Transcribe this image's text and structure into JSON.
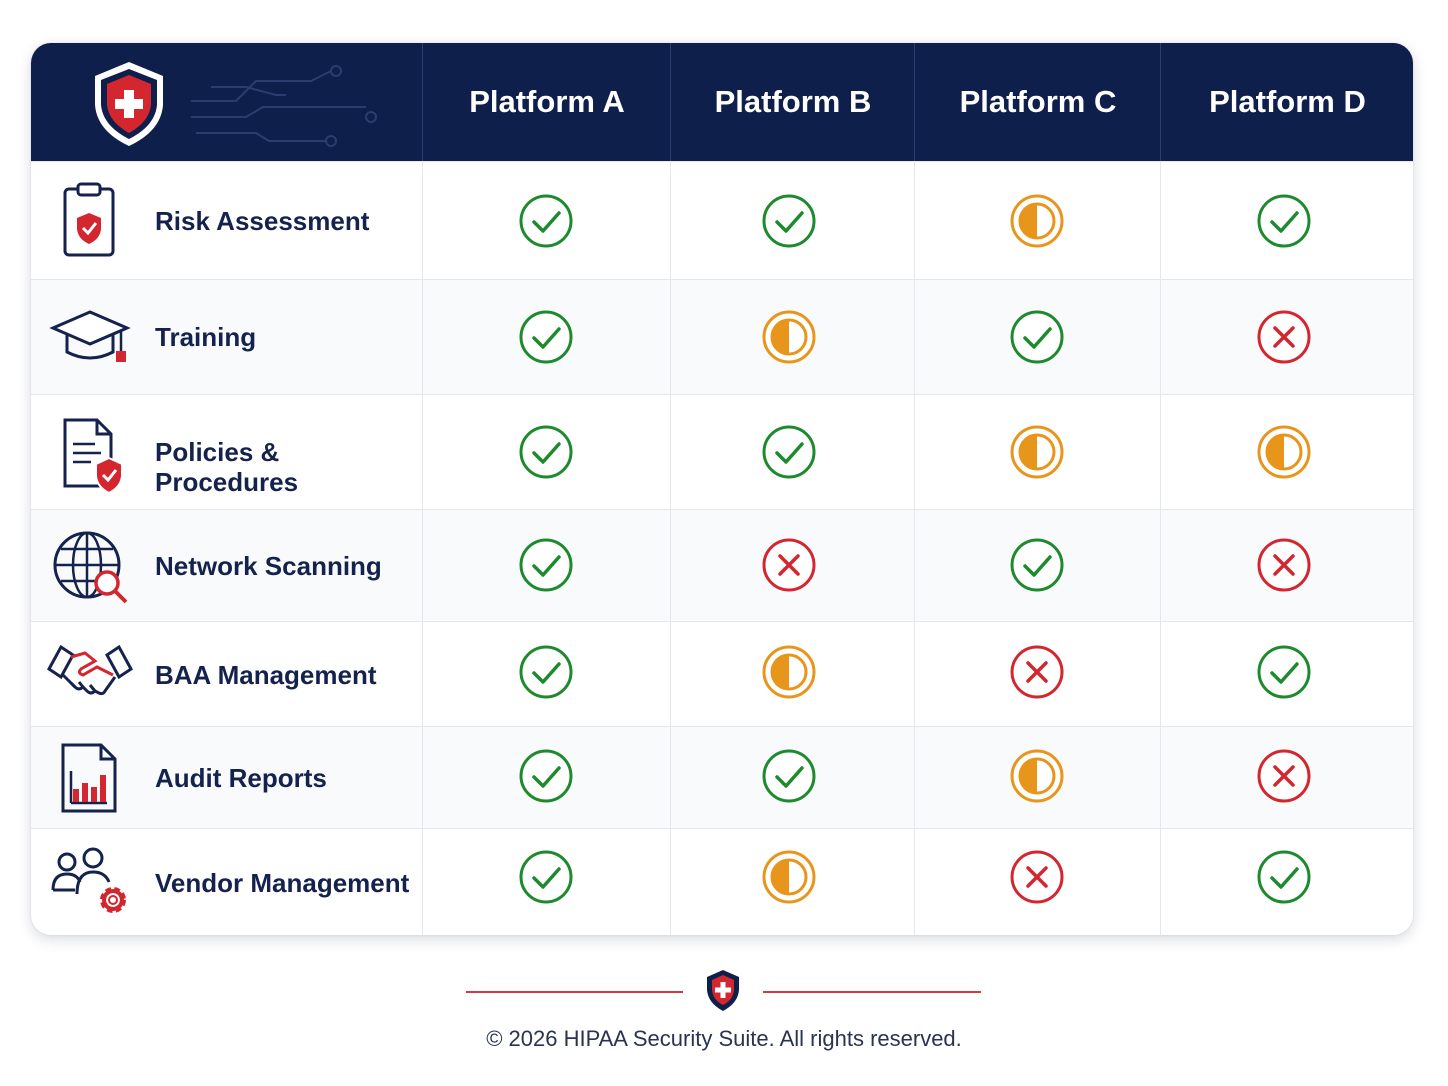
{
  "header": {
    "logo_icon": "shield-medical-cross-icon",
    "platforms": [
      "Platform A",
      "Platform B",
      "Platform C",
      "Platform D"
    ]
  },
  "features": [
    {
      "label": "Risk Assessment",
      "icon": "clipboard-shield-icon",
      "statuses": [
        "check",
        "check",
        "partial",
        "check"
      ]
    },
    {
      "label": "Training",
      "icon": "graduation-cap-icon",
      "statuses": [
        "check",
        "partial",
        "check",
        "cross"
      ]
    },
    {
      "label": "Policies & Procedures",
      "icon": "document-shield-icon",
      "statuses": [
        "check",
        "check",
        "partial",
        "partial"
      ]
    },
    {
      "label": "Network Scanning",
      "icon": "globe-search-icon",
      "statuses": [
        "check",
        "cross",
        "check",
        "cross"
      ]
    },
    {
      "label": "BAA Management",
      "icon": "handshake-icon",
      "statuses": [
        "check",
        "partial",
        "cross",
        "check"
      ]
    },
    {
      "label": "Audit Reports",
      "icon": "report-chart-icon",
      "statuses": [
        "check",
        "check",
        "partial",
        "cross"
      ]
    },
    {
      "label": "Vendor Management",
      "icon": "users-gear-icon",
      "statuses": [
        "check",
        "partial",
        "cross",
        "check"
      ]
    }
  ],
  "colors": {
    "header_bg": "#0f1f4b",
    "check": "#1e8a2e",
    "partial": "#e8951c",
    "cross": "#d3262f",
    "accent": "#d3262f"
  },
  "footer": {
    "icon": "shield-medical-cross-icon",
    "text": "© 2026 HIPAA Security Suite. All rights reserved."
  }
}
